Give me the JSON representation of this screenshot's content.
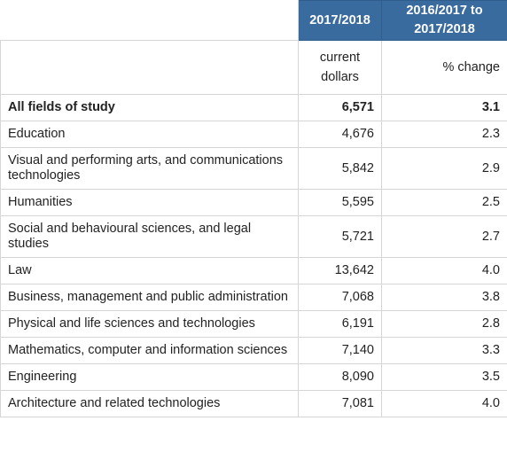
{
  "table": {
    "header": [
      "2017/2018",
      "2016/2017 to 2017/2018"
    ],
    "units": [
      "current dollars",
      "% change"
    ],
    "rows": [
      [
        "All fields of study",
        "6,571",
        "3.1"
      ],
      [
        "Education",
        "4,676",
        "2.3"
      ],
      [
        "Visual and performing arts, and communications technologies",
        "5,842",
        "2.9"
      ],
      [
        "Humanities",
        "5,595",
        "2.5"
      ],
      [
        "Social and behavioural sciences, and legal studies",
        "5,721",
        "2.7"
      ],
      [
        "Law",
        "13,642",
        "4.0"
      ],
      [
        "Business, management and public administration",
        "7,068",
        "3.8"
      ],
      [
        "Physical and life sciences and technologies",
        "6,191",
        "2.8"
      ],
      [
        "Mathematics, computer and information sciences",
        "7,140",
        "3.3"
      ],
      [
        "Engineering",
        "8,090",
        "3.5"
      ],
      [
        "Architecture and related technologies",
        "7,081",
        "4.0"
      ]
    ]
  }
}
